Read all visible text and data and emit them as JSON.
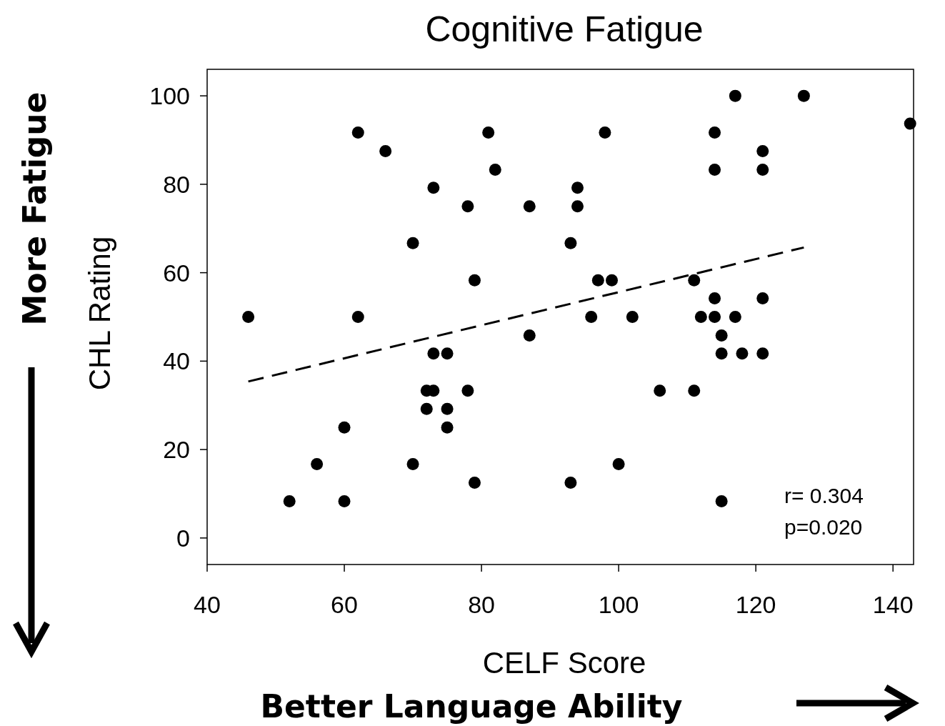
{
  "chart_data": {
    "type": "scatter",
    "title": "Cognitive Fatigue",
    "xlabel": "CELF Score",
    "ylabel": "CHL Rating",
    "xlim": [
      40,
      143
    ],
    "xticks": [
      40,
      60,
      80,
      100,
      120,
      140
    ],
    "ylim": [
      -6,
      106
    ],
    "yticks": [
      0,
      20,
      40,
      60,
      80,
      100
    ],
    "annotations": [
      "r= 0.304",
      "p=0.020",
      "More Fatigue",
      "Better Language Ability"
    ],
    "series": [
      {
        "color": "#000000",
        "marker": "circle",
        "x": [
          46,
          52,
          56,
          60,
          60,
          62,
          62,
          66,
          70,
          70,
          72,
          72,
          73,
          73,
          73,
          75,
          75,
          75,
          78,
          78,
          79,
          79,
          81,
          82,
          87,
          87,
          93,
          93,
          94,
          94,
          96,
          97,
          98,
          99,
          100,
          102,
          106,
          111,
          111,
          112,
          114,
          114,
          114,
          114,
          115,
          115,
          115,
          117,
          117,
          118,
          121,
          121,
          121,
          121,
          127,
          142.5
        ],
        "values": [
          50,
          8.3,
          16.7,
          25,
          8.3,
          91.7,
          50,
          87.5,
          66.7,
          16.7,
          33.3,
          29.2,
          41.7,
          79.2,
          33.3,
          41.7,
          29.2,
          25,
          75,
          33.3,
          58.3,
          12.5,
          91.7,
          83.3,
          75,
          45.8,
          66.7,
          12.5,
          79.2,
          75,
          50,
          58.3,
          91.7,
          58.3,
          16.7,
          50,
          33.3,
          58.3,
          33.3,
          50,
          91.7,
          83.3,
          54.2,
          50,
          45.8,
          41.7,
          8.3,
          100,
          50,
          41.7,
          87.5,
          83.3,
          54.2,
          41.7,
          100,
          93.7
        ]
      },
      {
        "type": "line",
        "color": "#000000",
        "line_style": "dashed",
        "marker": "none",
        "x": [
          46,
          127
        ],
        "values": [
          35.4,
          65.7
        ]
      }
    ]
  }
}
